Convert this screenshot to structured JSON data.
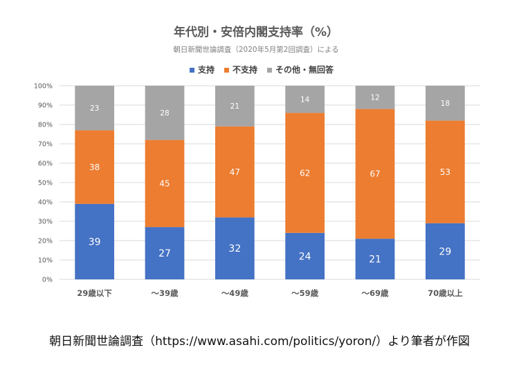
{
  "chart_data": {
    "type": "bar",
    "stacked": true,
    "title": "年代別・安倍内閣支持率（%）",
    "subtitle": "朝日新聞世論調査（2020年5月第2回調査）による",
    "categories": [
      "29歳以下",
      "〜39歳",
      "〜49歳",
      "〜59歳",
      "〜69歳",
      "70歳以上"
    ],
    "series": [
      {
        "name": "支持",
        "color": "#4472c4",
        "values": [
          39,
          27,
          32,
          24,
          21,
          29
        ]
      },
      {
        "name": "不支持",
        "color": "#ed7d31",
        "values": [
          38,
          45,
          47,
          62,
          67,
          53
        ]
      },
      {
        "name": "その他・無回答",
        "color": "#a5a5a5",
        "values": [
          23,
          28,
          21,
          14,
          12,
          18
        ]
      }
    ],
    "y_ticks": [
      "0%",
      "10%",
      "20%",
      "30%",
      "40%",
      "50%",
      "60%",
      "70%",
      "80%",
      "90%",
      "100%"
    ],
    "ylim": [
      0,
      100
    ],
    "legend_position": "top",
    "grid": true
  },
  "caption": "朝日新聞世論調査（https://www.asahi.com/politics/yoron/）より筆者が作図"
}
